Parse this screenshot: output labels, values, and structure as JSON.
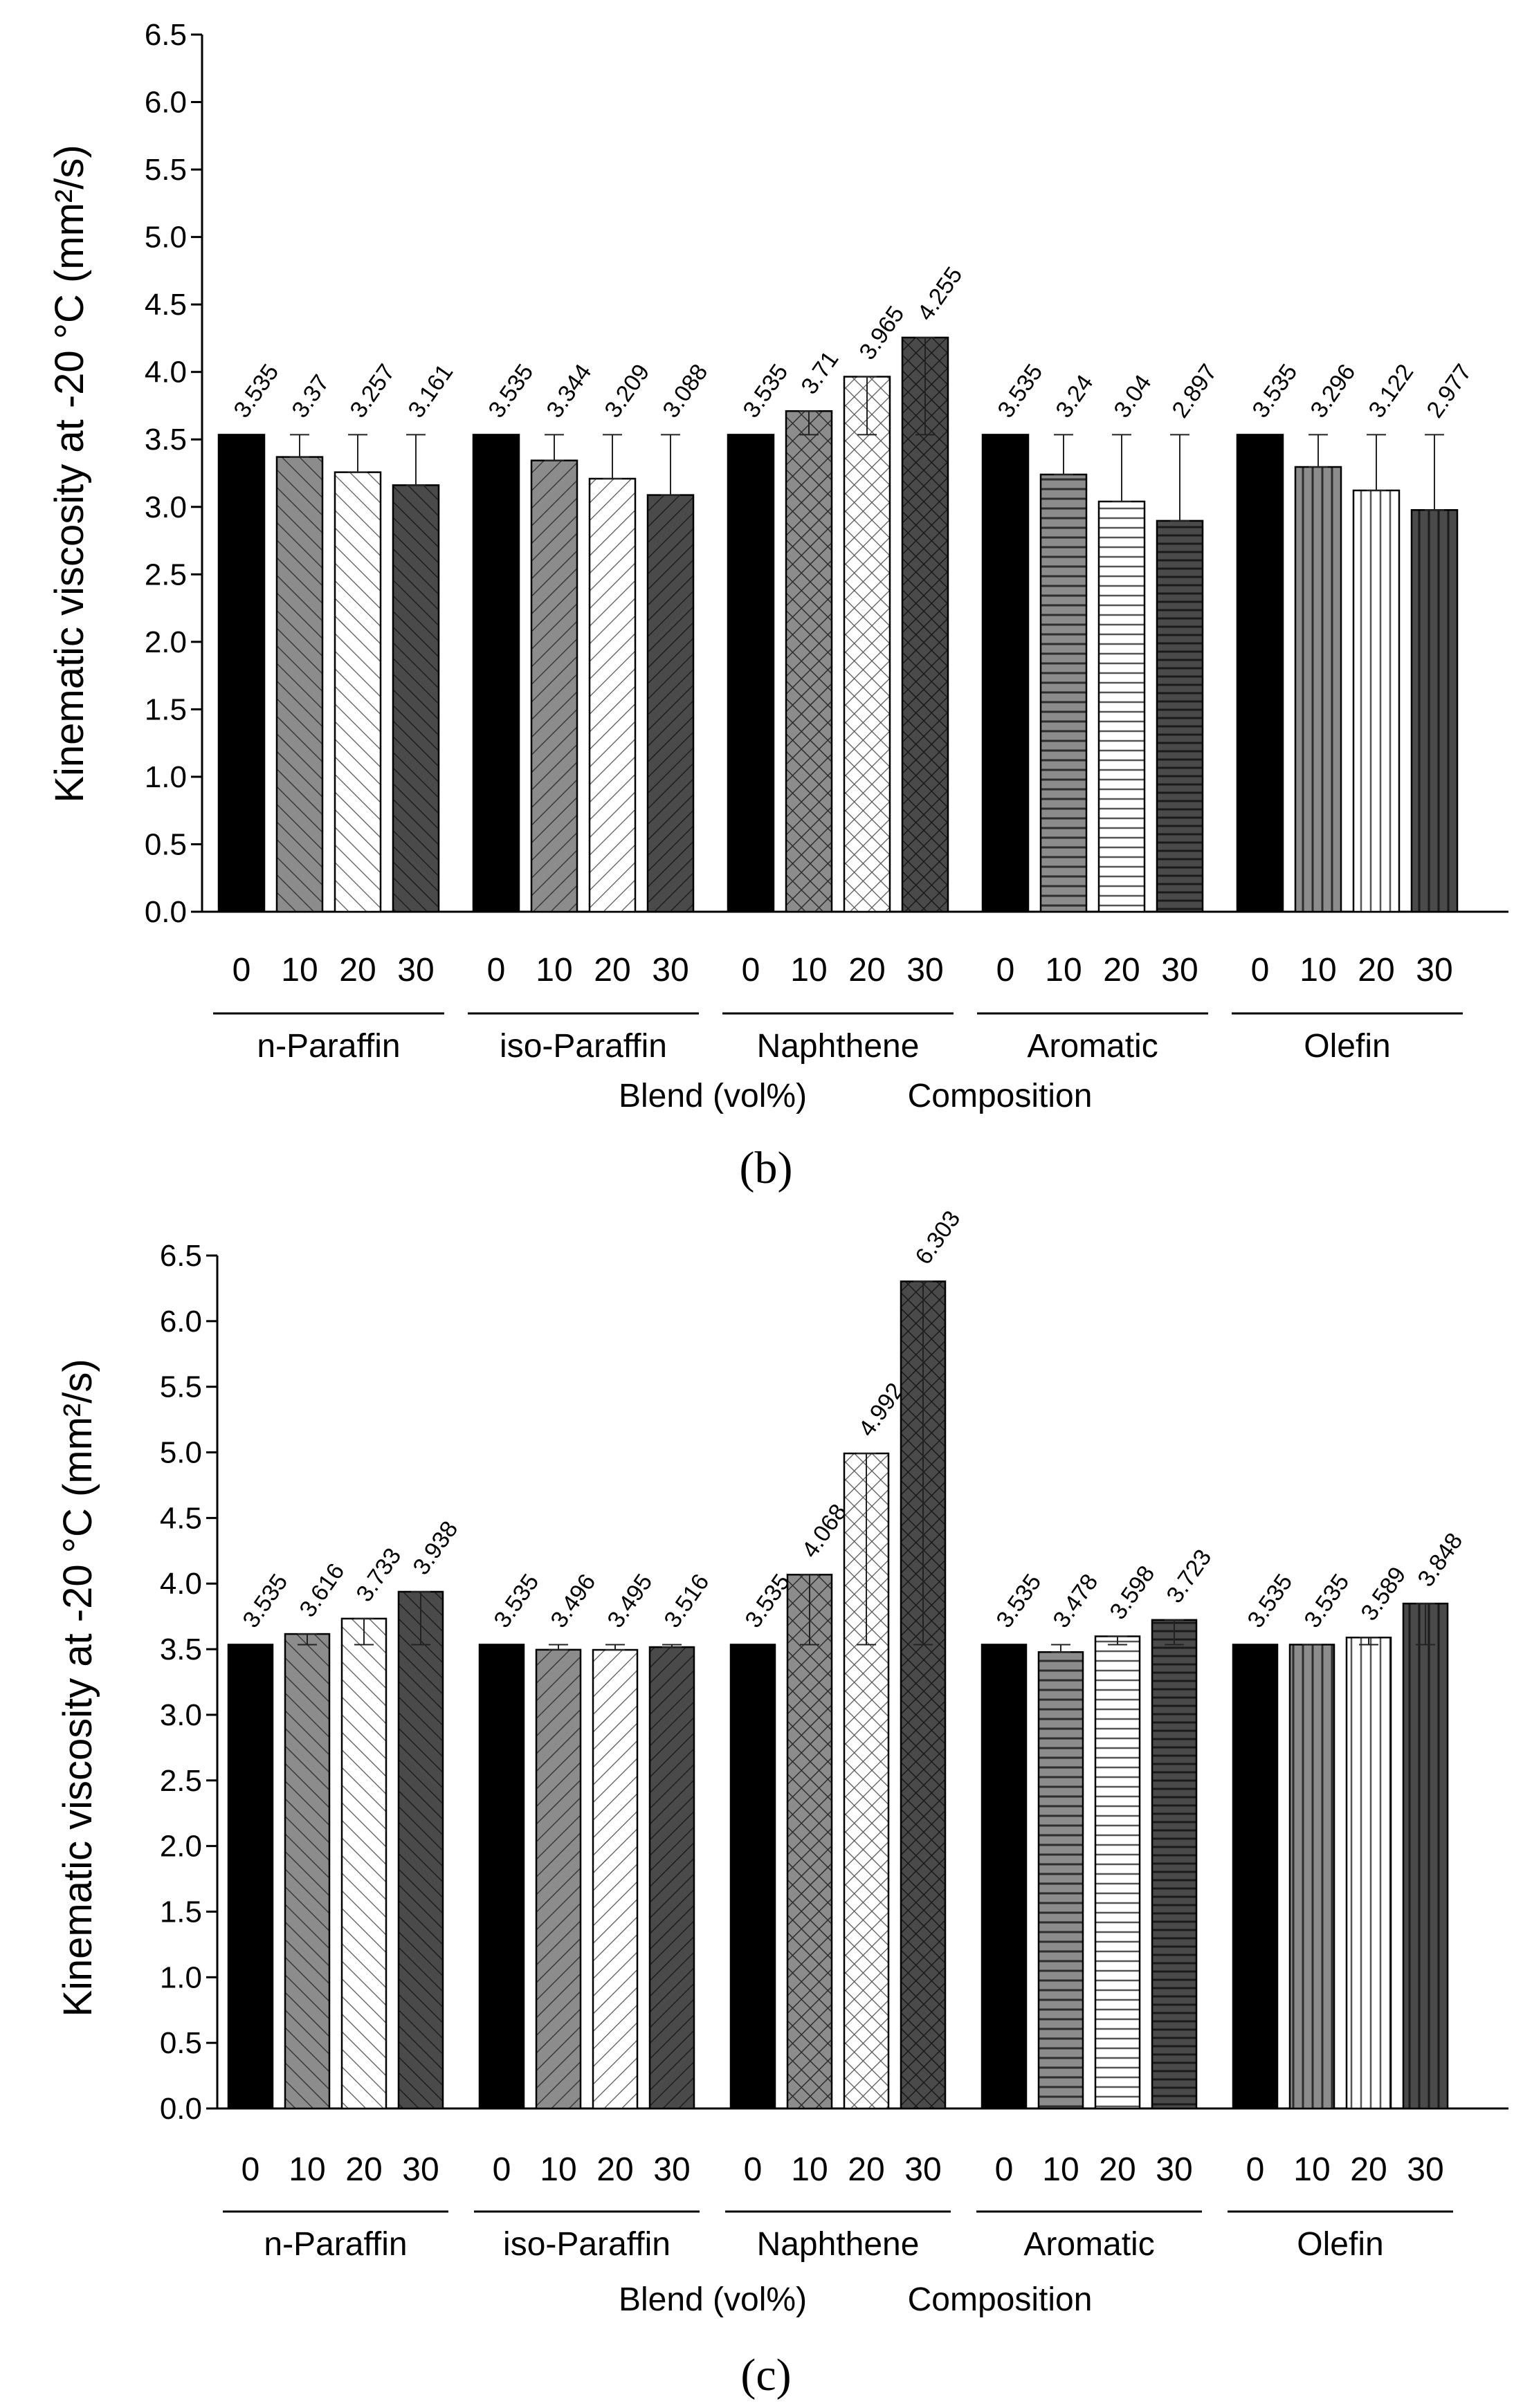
{
  "chart_data": [
    {
      "type": "bar",
      "panel_label": "(b)",
      "ylabel": "Kinematic viscosity at -20 °C (mm²/s)",
      "xlabel_left": "Blend (vol%)",
      "xlabel_right": "Composition",
      "ylim": [
        0,
        6.5
      ],
      "yticks": [
        "0.0",
        "0.5",
        "1.0",
        "1.5",
        "2.0",
        "2.5",
        "3.0",
        "3.5",
        "4.0",
        "4.5",
        "5.0",
        "5.5",
        "6.0",
        "6.5"
      ],
      "blend_levels": [
        "0",
        "10",
        "20",
        "30"
      ],
      "groups": [
        {
          "name": "n-Paraffin",
          "values": [
            3.535,
            3.37,
            3.257,
            3.161
          ],
          "labels": [
            "3.535",
            "3.37",
            "3.257",
            "3.161"
          ]
        },
        {
          "name": "iso-Paraffin",
          "values": [
            3.535,
            3.344,
            3.209,
            3.088
          ],
          "labels": [
            "3.535",
            "3.344",
            "3.209",
            "3.088"
          ]
        },
        {
          "name": "Naphthene",
          "values": [
            3.535,
            3.71,
            3.965,
            4.255
          ],
          "labels": [
            "3.535",
            "3.71",
            "3.965",
            "4.255"
          ]
        },
        {
          "name": "Aromatic",
          "values": [
            3.535,
            3.24,
            3.04,
            2.897
          ],
          "labels": [
            "3.535",
            "3.24",
            "3.04",
            "2.897"
          ]
        },
        {
          "name": "Olefin",
          "values": [
            3.535,
            3.296,
            3.122,
            2.977
          ],
          "labels": [
            "3.535",
            "3.296",
            "3.122",
            "2.977"
          ]
        }
      ],
      "error_reference": 3.535
    },
    {
      "type": "bar",
      "panel_label": "(c)",
      "ylabel": "Kinematic viscosity at -20 °C (mm²/s)",
      "xlabel_left": "Blend (vol%)",
      "xlabel_right": "Composition",
      "ylim": [
        0,
        6.5
      ],
      "yticks": [
        "0.0",
        "0.5",
        "1.0",
        "1.5",
        "2.0",
        "2.5",
        "3.0",
        "3.5",
        "4.0",
        "4.5",
        "5.0",
        "5.5",
        "6.0",
        "6.5"
      ],
      "blend_levels": [
        "0",
        "10",
        "20",
        "30"
      ],
      "groups": [
        {
          "name": "n-Paraffin",
          "values": [
            3.535,
            3.616,
            3.733,
            3.938
          ],
          "labels": [
            "3.535",
            "3.616",
            "3.733",
            "3.938"
          ]
        },
        {
          "name": "iso-Paraffin",
          "values": [
            3.535,
            3.496,
            3.495,
            3.516
          ],
          "labels": [
            "3.535",
            "3.496",
            "3.495",
            "3.516"
          ]
        },
        {
          "name": "Naphthene",
          "values": [
            3.535,
            4.068,
            4.992,
            6.303
          ],
          "labels": [
            "3.535",
            "4.068",
            "4.992",
            "6.303"
          ]
        },
        {
          "name": "Aromatic",
          "values": [
            3.535,
            3.478,
            3.598,
            3.723
          ],
          "labels": [
            "3.535",
            "3.478",
            "3.598",
            "3.723"
          ]
        },
        {
          "name": "Olefin",
          "values": [
            3.535,
            3.535,
            3.589,
            3.848
          ],
          "labels": [
            "3.535",
            "3.535",
            "3.589",
            "3.848"
          ]
        }
      ],
      "error_reference": 3.535
    }
  ]
}
